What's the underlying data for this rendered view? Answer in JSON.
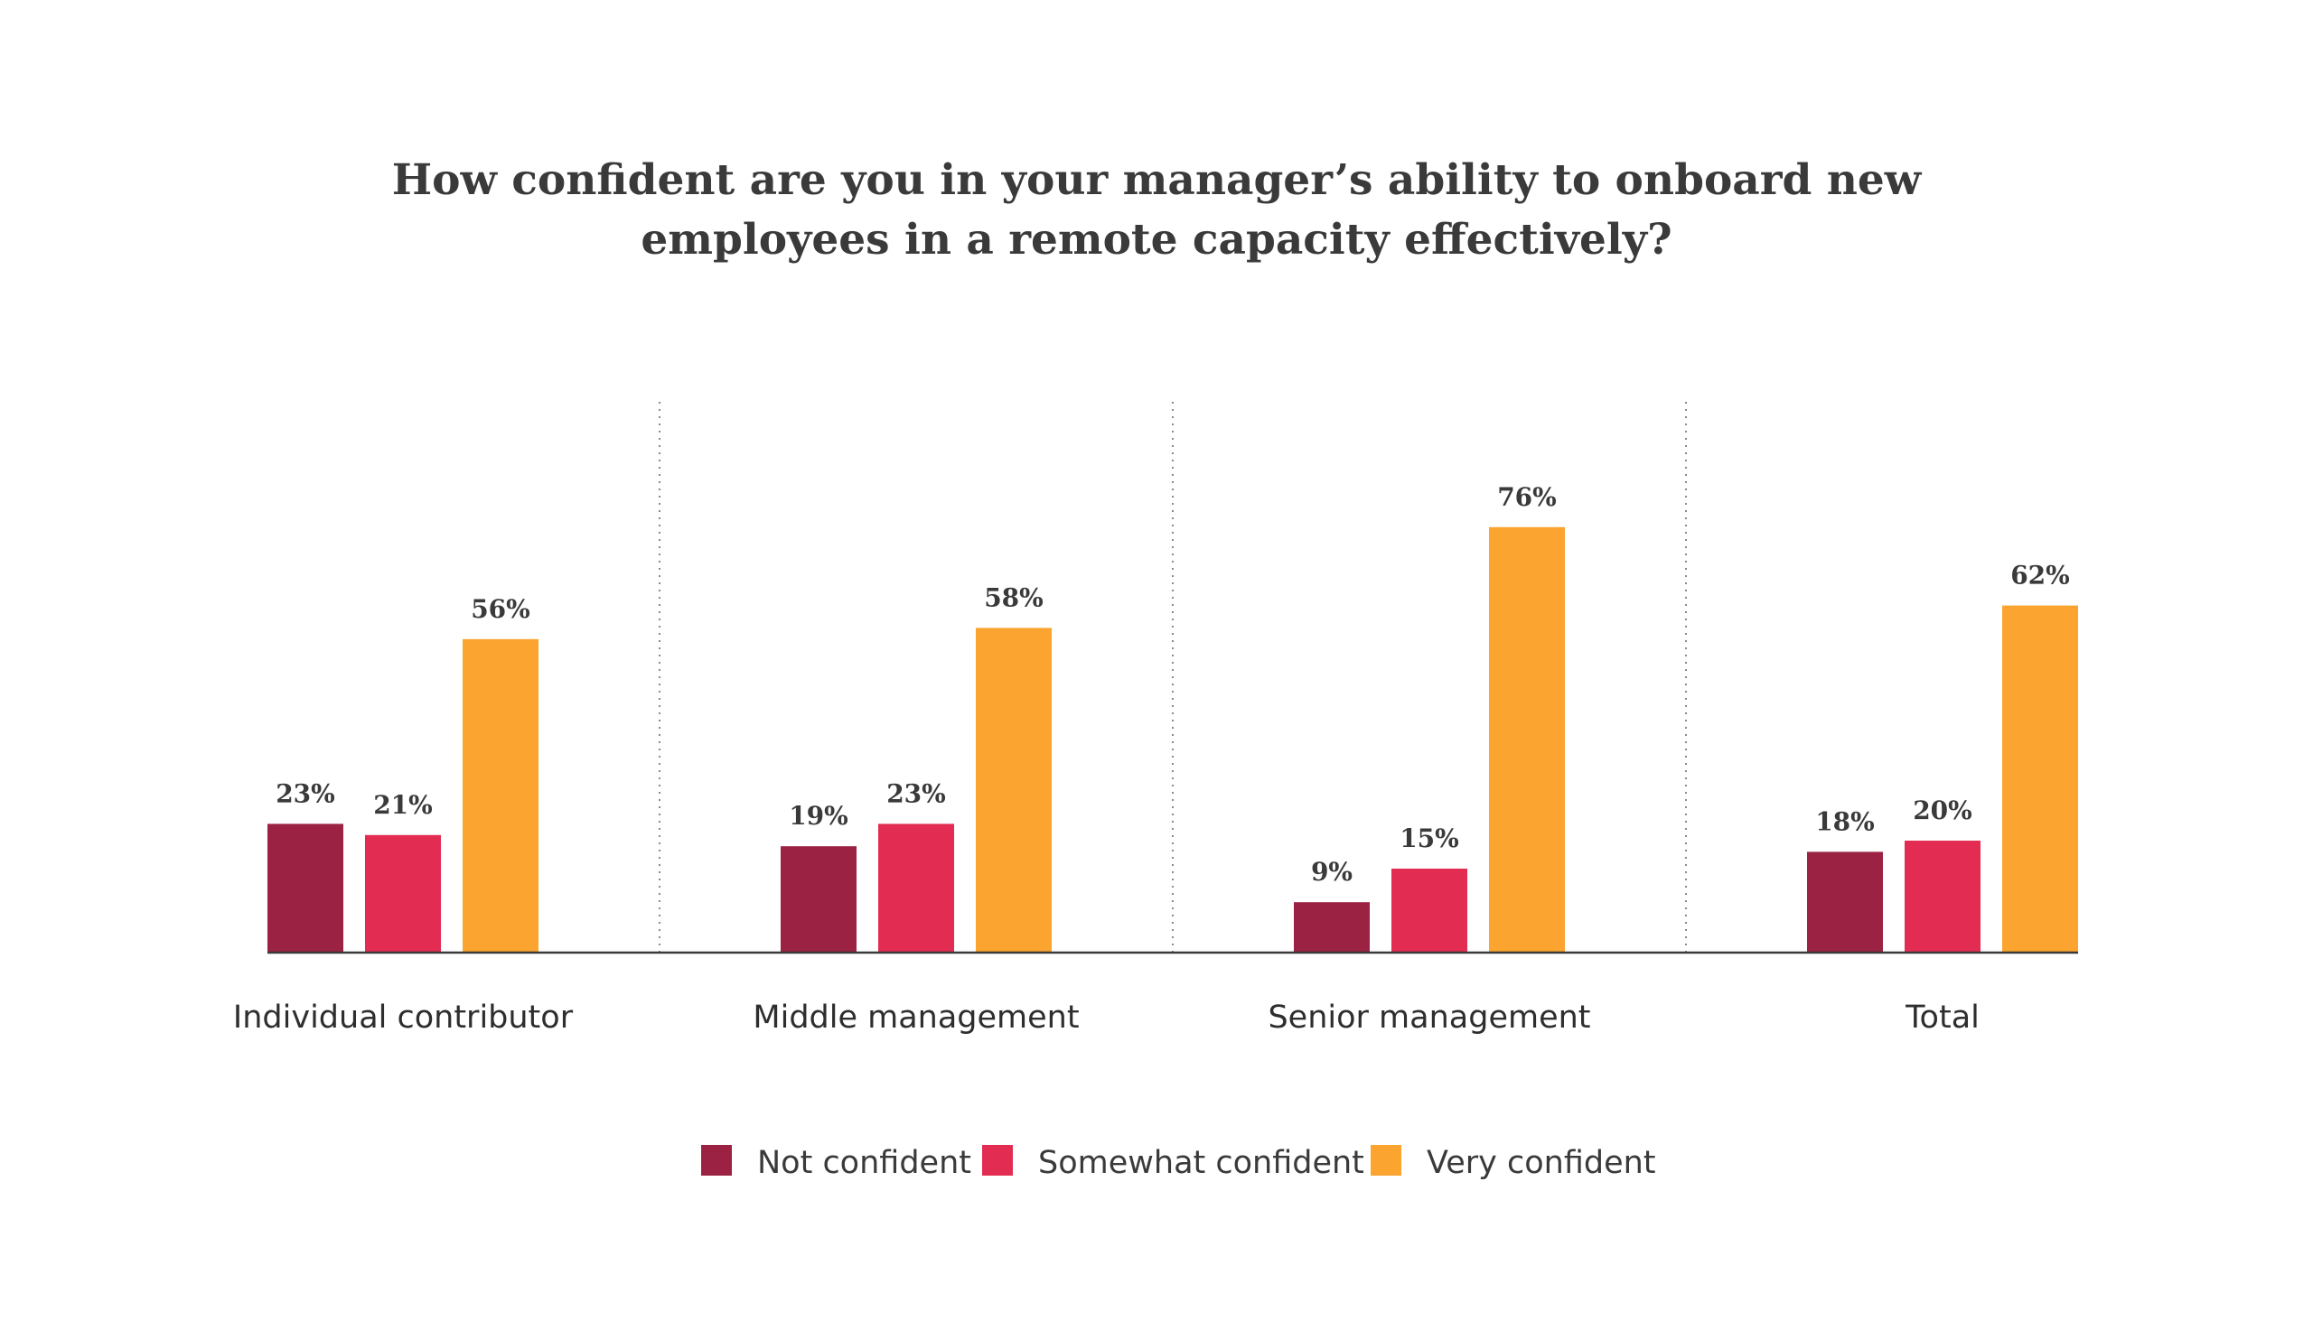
{
  "chart_data": {
    "type": "bar",
    "title": "How confident are you in your manager’s ability to onboard new employees in a remote capacity effectively?",
    "title_lines": [
      "How confident are you in your manager’s ability to onboard new",
      "employees in a remote capacity effectively?"
    ],
    "categories": [
      "Individual contributor",
      "Middle management",
      "Senior management",
      "Total"
    ],
    "series": [
      {
        "name": "Not confident",
        "color": "#9b2242",
        "values": [
          23,
          19,
          9,
          18
        ]
      },
      {
        "name": "Somewhat confident",
        "color": "#e32c52",
        "values": [
          21,
          23,
          15,
          20
        ]
      },
      {
        "name": "Very confident",
        "color": "#fba42f",
        "values": [
          56,
          58,
          76,
          62
        ]
      }
    ],
    "value_suffix": "%",
    "ylim": [
      0,
      100
    ],
    "y_axis_visible": false,
    "grid": false,
    "group_separators": "dotted",
    "legend_position": "bottom-center"
  }
}
